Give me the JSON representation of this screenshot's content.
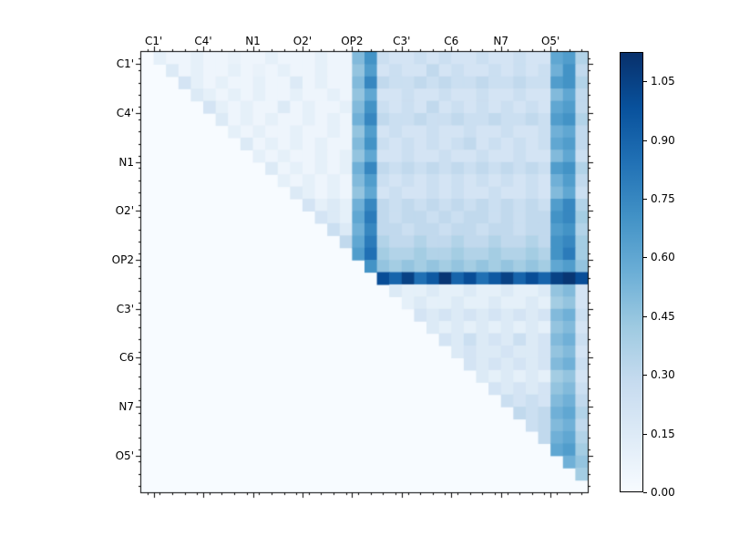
{
  "figure": {
    "background": "#ffffff",
    "border_color": "#000000"
  },
  "chart_data": {
    "type": "heatmap",
    "title": "",
    "xlabel": "",
    "ylabel": "",
    "n": 36,
    "x_tick_labels": [
      "C1'",
      "C4'",
      "N1",
      "O2'",
      "OP2",
      "C3'",
      "C6",
      "N7",
      "O5'"
    ],
    "y_tick_labels": [
      "C1'",
      "C4'",
      "N1",
      "O2'",
      "OP2",
      "C3'",
      "C6",
      "N7",
      "O5'"
    ],
    "tick_positions": [
      1,
      5,
      9,
      13,
      17,
      21,
      25,
      29,
      33
    ],
    "vmin": 0,
    "vmax": 1.125,
    "colormap": "Blues",
    "colormap_colors": [
      "#f7fbff",
      "#deebf7",
      "#c6dbef",
      "#9ecae1",
      "#6baed6",
      "#4292c6",
      "#2171b5",
      "#08519c",
      "#08306b"
    ],
    "colorbar_ticks": [
      {
        "value": 0.0,
        "label": "0.00"
      },
      {
        "value": 0.15,
        "label": "0.15"
      },
      {
        "value": 0.3,
        "label": "0.30"
      },
      {
        "value": 0.45,
        "label": "0.45"
      },
      {
        "value": 0.6,
        "label": "0.60"
      },
      {
        "value": 0.75,
        "label": "0.75"
      },
      {
        "value": 0.9,
        "label": "0.90"
      },
      {
        "value": 1.05,
        "label": "1.05"
      }
    ],
    "legend": "colorbar-right",
    "grid": false,
    "matrix": [
      [
        0,
        0.1,
        0.05,
        0.05,
        0.1,
        0.05,
        0.05,
        0.08,
        0.05,
        0.05,
        0.1,
        0.05,
        0.05,
        0.05,
        0.1,
        0.05,
        0.05,
        0.5,
        0.7,
        0.25,
        0.2,
        0.2,
        0.25,
        0.2,
        0.25,
        0.2,
        0.2,
        0.25,
        0.2,
        0.2,
        0.25,
        0.2,
        0.2,
        0.6,
        0.65,
        0.35
      ],
      [
        0,
        0,
        0.15,
        0.05,
        0.1,
        0.05,
        0.05,
        0.1,
        0.05,
        0.08,
        0.05,
        0.1,
        0.05,
        0.05,
        0.1,
        0.05,
        0.05,
        0.45,
        0.65,
        0.2,
        0.25,
        0.2,
        0.2,
        0.3,
        0.2,
        0.25,
        0.2,
        0.2,
        0.25,
        0.2,
        0.25,
        0.2,
        0.25,
        0.55,
        0.7,
        0.3
      ],
      [
        0,
        0,
        0,
        0.2,
        0.1,
        0.05,
        0.1,
        0.05,
        0.05,
        0.1,
        0.05,
        0.05,
        0.15,
        0.05,
        0.1,
        0.05,
        0.05,
        0.5,
        0.75,
        0.3,
        0.25,
        0.25,
        0.3,
        0.25,
        0.3,
        0.25,
        0.25,
        0.3,
        0.25,
        0.25,
        0.3,
        0.25,
        0.25,
        0.65,
        0.7,
        0.35
      ],
      [
        0,
        0,
        0,
        0,
        0.15,
        0.1,
        0.05,
        0.1,
        0.05,
        0.1,
        0.05,
        0.05,
        0.1,
        0.05,
        0.05,
        0.1,
        0.05,
        0.45,
        0.6,
        0.2,
        0.2,
        0.25,
        0.2,
        0.2,
        0.25,
        0.2,
        0.2,
        0.25,
        0.2,
        0.2,
        0.25,
        0.2,
        0.2,
        0.5,
        0.6,
        0.3
      ],
      [
        0,
        0,
        0,
        0,
        0,
        0.2,
        0.1,
        0.05,
        0.1,
        0.05,
        0.05,
        0.15,
        0.05,
        0.1,
        0.05,
        0.05,
        0.1,
        0.5,
        0.7,
        0.25,
        0.2,
        0.25,
        0.2,
        0.3,
        0.2,
        0.25,
        0.2,
        0.25,
        0.2,
        0.25,
        0.2,
        0.25,
        0.2,
        0.6,
        0.65,
        0.3
      ],
      [
        0,
        0,
        0,
        0,
        0,
        0,
        0.15,
        0.05,
        0.1,
        0.05,
        0.1,
        0.05,
        0.05,
        0.1,
        0.05,
        0.1,
        0.05,
        0.55,
        0.75,
        0.3,
        0.25,
        0.25,
        0.3,
        0.25,
        0.25,
        0.3,
        0.25,
        0.25,
        0.3,
        0.25,
        0.25,
        0.3,
        0.25,
        0.65,
        0.7,
        0.35
      ],
      [
        0,
        0,
        0,
        0,
        0,
        0,
        0,
        0.1,
        0.05,
        0.1,
        0.05,
        0.05,
        0.1,
        0.05,
        0.05,
        0.1,
        0.05,
        0.45,
        0.65,
        0.2,
        0.25,
        0.2,
        0.2,
        0.25,
        0.2,
        0.2,
        0.25,
        0.2,
        0.2,
        0.25,
        0.2,
        0.2,
        0.25,
        0.55,
        0.6,
        0.3
      ],
      [
        0,
        0,
        0,
        0,
        0,
        0,
        0,
        0,
        0.15,
        0.05,
        0.1,
        0.05,
        0.1,
        0.05,
        0.1,
        0.05,
        0.05,
        0.5,
        0.7,
        0.25,
        0.2,
        0.25,
        0.2,
        0.25,
        0.2,
        0.25,
        0.3,
        0.2,
        0.25,
        0.2,
        0.25,
        0.2,
        0.25,
        0.6,
        0.65,
        0.3
      ],
      [
        0,
        0,
        0,
        0,
        0,
        0,
        0,
        0,
        0,
        0.1,
        0.05,
        0.1,
        0.05,
        0.05,
        0.1,
        0.05,
        0.1,
        0.45,
        0.6,
        0.2,
        0.2,
        0.25,
        0.2,
        0.2,
        0.25,
        0.2,
        0.2,
        0.25,
        0.2,
        0.2,
        0.25,
        0.2,
        0.2,
        0.5,
        0.6,
        0.25
      ],
      [
        0,
        0,
        0,
        0,
        0,
        0,
        0,
        0,
        0,
        0,
        0.15,
        0.05,
        0.1,
        0.05,
        0.1,
        0.05,
        0.1,
        0.55,
        0.75,
        0.3,
        0.25,
        0.3,
        0.25,
        0.3,
        0.25,
        0.3,
        0.25,
        0.3,
        0.25,
        0.3,
        0.25,
        0.3,
        0.25,
        0.65,
        0.7,
        0.35
      ],
      [
        0,
        0,
        0,
        0,
        0,
        0,
        0,
        0,
        0,
        0,
        0,
        0.1,
        0.05,
        0.1,
        0.05,
        0.1,
        0.05,
        0.5,
        0.65,
        0.25,
        0.2,
        0.25,
        0.2,
        0.25,
        0.2,
        0.25,
        0.2,
        0.25,
        0.2,
        0.25,
        0.2,
        0.25,
        0.2,
        0.55,
        0.65,
        0.3
      ],
      [
        0,
        0,
        0,
        0,
        0,
        0,
        0,
        0,
        0,
        0,
        0,
        0,
        0.15,
        0.1,
        0.05,
        0.1,
        0.05,
        0.45,
        0.6,
        0.2,
        0.25,
        0.2,
        0.2,
        0.25,
        0.2,
        0.25,
        0.2,
        0.2,
        0.25,
        0.2,
        0.2,
        0.25,
        0.2,
        0.5,
        0.6,
        0.25
      ],
      [
        0,
        0,
        0,
        0,
        0,
        0,
        0,
        0,
        0,
        0,
        0,
        0,
        0,
        0.2,
        0.1,
        0.15,
        0.1,
        0.55,
        0.75,
        0.3,
        0.25,
        0.3,
        0.25,
        0.3,
        0.25,
        0.3,
        0.25,
        0.3,
        0.25,
        0.3,
        0.25,
        0.3,
        0.25,
        0.65,
        0.75,
        0.35
      ],
      [
        0,
        0,
        0,
        0,
        0,
        0,
        0,
        0,
        0,
        0,
        0,
        0,
        0,
        0,
        0.2,
        0.15,
        0.1,
        0.6,
        0.8,
        0.3,
        0.25,
        0.3,
        0.3,
        0.25,
        0.3,
        0.25,
        0.3,
        0.3,
        0.25,
        0.3,
        0.25,
        0.3,
        0.3,
        0.7,
        0.75,
        0.4
      ],
      [
        0,
        0,
        0,
        0,
        0,
        0,
        0,
        0,
        0,
        0,
        0,
        0,
        0,
        0,
        0,
        0.25,
        0.15,
        0.55,
        0.75,
        0.3,
        0.3,
        0.25,
        0.3,
        0.3,
        0.25,
        0.3,
        0.3,
        0.25,
        0.3,
        0.3,
        0.25,
        0.3,
        0.3,
        0.65,
        0.7,
        0.35
      ],
      [
        0,
        0,
        0,
        0,
        0,
        0,
        0,
        0,
        0,
        0,
        0,
        0,
        0,
        0,
        0,
        0,
        0.3,
        0.6,
        0.8,
        0.35,
        0.3,
        0.3,
        0.35,
        0.3,
        0.3,
        0.35,
        0.3,
        0.3,
        0.35,
        0.3,
        0.3,
        0.35,
        0.3,
        0.7,
        0.75,
        0.4
      ],
      [
        0,
        0,
        0,
        0,
        0,
        0,
        0,
        0,
        0,
        0,
        0,
        0,
        0,
        0,
        0,
        0,
        0,
        0.65,
        0.85,
        0.4,
        0.35,
        0.35,
        0.4,
        0.35,
        0.35,
        0.4,
        0.35,
        0.35,
        0.4,
        0.35,
        0.35,
        0.4,
        0.35,
        0.7,
        0.8,
        0.4
      ],
      [
        0,
        0,
        0,
        0,
        0,
        0,
        0,
        0,
        0,
        0,
        0,
        0,
        0,
        0,
        0,
        0,
        0,
        0,
        0.7,
        0.45,
        0.4,
        0.45,
        0.4,
        0.45,
        0.4,
        0.45,
        0.4,
        0.45,
        0.4,
        0.45,
        0.4,
        0.45,
        0.4,
        0.6,
        0.65,
        0.45
      ],
      [
        0,
        0,
        0,
        0,
        0,
        0,
        0,
        0,
        0,
        0,
        0,
        0,
        0,
        0,
        0,
        0,
        0,
        0,
        0,
        1.0,
        0.9,
        1.05,
        0.85,
        0.95,
        1.1,
        0.9,
        1.0,
        0.85,
        0.95,
        1.05,
        0.9,
        1.0,
        0.9,
        1.05,
        1.1,
        1.0
      ],
      [
        0,
        0,
        0,
        0,
        0,
        0,
        0,
        0,
        0,
        0,
        0,
        0,
        0,
        0,
        0,
        0,
        0,
        0,
        0,
        0,
        0.15,
        0.1,
        0.1,
        0.15,
        0.1,
        0.1,
        0.15,
        0.1,
        0.1,
        0.15,
        0.1,
        0.1,
        0.15,
        0.45,
        0.5,
        0.2
      ],
      [
        0,
        0,
        0,
        0,
        0,
        0,
        0,
        0,
        0,
        0,
        0,
        0,
        0,
        0,
        0,
        0,
        0,
        0,
        0,
        0,
        0,
        0.1,
        0.15,
        0.1,
        0.1,
        0.15,
        0.1,
        0.1,
        0.15,
        0.1,
        0.1,
        0.15,
        0.1,
        0.4,
        0.45,
        0.2
      ],
      [
        0,
        0,
        0,
        0,
        0,
        0,
        0,
        0,
        0,
        0,
        0,
        0,
        0,
        0,
        0,
        0,
        0,
        0,
        0,
        0,
        0,
        0,
        0.2,
        0.15,
        0.2,
        0.15,
        0.2,
        0.15,
        0.2,
        0.15,
        0.2,
        0.15,
        0.2,
        0.5,
        0.55,
        0.25
      ],
      [
        0,
        0,
        0,
        0,
        0,
        0,
        0,
        0,
        0,
        0,
        0,
        0,
        0,
        0,
        0,
        0,
        0,
        0,
        0,
        0,
        0,
        0,
        0,
        0.15,
        0.1,
        0.15,
        0.1,
        0.15,
        0.1,
        0.15,
        0.1,
        0.15,
        0.1,
        0.45,
        0.5,
        0.2
      ],
      [
        0,
        0,
        0,
        0,
        0,
        0,
        0,
        0,
        0,
        0,
        0,
        0,
        0,
        0,
        0,
        0,
        0,
        0,
        0,
        0,
        0,
        0,
        0,
        0,
        0.2,
        0.15,
        0.25,
        0.15,
        0.2,
        0.15,
        0.25,
        0.15,
        0.2,
        0.5,
        0.55,
        0.25
      ],
      [
        0,
        0,
        0,
        0,
        0,
        0,
        0,
        0,
        0,
        0,
        0,
        0,
        0,
        0,
        0,
        0,
        0,
        0,
        0,
        0,
        0,
        0,
        0,
        0,
        0,
        0.15,
        0.2,
        0.15,
        0.15,
        0.2,
        0.15,
        0.15,
        0.2,
        0.45,
        0.5,
        0.2
      ],
      [
        0,
        0,
        0,
        0,
        0,
        0,
        0,
        0,
        0,
        0,
        0,
        0,
        0,
        0,
        0,
        0,
        0,
        0,
        0,
        0,
        0,
        0,
        0,
        0,
        0,
        0,
        0.2,
        0.15,
        0.2,
        0.15,
        0.2,
        0.15,
        0.2,
        0.5,
        0.55,
        0.25
      ],
      [
        0,
        0,
        0,
        0,
        0,
        0,
        0,
        0,
        0,
        0,
        0,
        0,
        0,
        0,
        0,
        0,
        0,
        0,
        0,
        0,
        0,
        0,
        0,
        0,
        0,
        0,
        0,
        0.15,
        0.1,
        0.15,
        0.1,
        0.15,
        0.1,
        0.4,
        0.45,
        0.2
      ],
      [
        0,
        0,
        0,
        0,
        0,
        0,
        0,
        0,
        0,
        0,
        0,
        0,
        0,
        0,
        0,
        0,
        0,
        0,
        0,
        0,
        0,
        0,
        0,
        0,
        0,
        0,
        0,
        0,
        0.2,
        0.15,
        0.2,
        0.15,
        0.2,
        0.45,
        0.5,
        0.25
      ],
      [
        0,
        0,
        0,
        0,
        0,
        0,
        0,
        0,
        0,
        0,
        0,
        0,
        0,
        0,
        0,
        0,
        0,
        0,
        0,
        0,
        0,
        0,
        0,
        0,
        0,
        0,
        0,
        0,
        0,
        0.25,
        0.2,
        0.25,
        0.2,
        0.5,
        0.55,
        0.3
      ],
      [
        0,
        0,
        0,
        0,
        0,
        0,
        0,
        0,
        0,
        0,
        0,
        0,
        0,
        0,
        0,
        0,
        0,
        0,
        0,
        0,
        0,
        0,
        0,
        0,
        0,
        0,
        0,
        0,
        0,
        0,
        0.3,
        0.25,
        0.3,
        0.55,
        0.6,
        0.35
      ],
      [
        0,
        0,
        0,
        0,
        0,
        0,
        0,
        0,
        0,
        0,
        0,
        0,
        0,
        0,
        0,
        0,
        0,
        0,
        0,
        0,
        0,
        0,
        0,
        0,
        0,
        0,
        0,
        0,
        0,
        0,
        0,
        0.25,
        0.3,
        0.5,
        0.55,
        0.3
      ],
      [
        0,
        0,
        0,
        0,
        0,
        0,
        0,
        0,
        0,
        0,
        0,
        0,
        0,
        0,
        0,
        0,
        0,
        0,
        0,
        0,
        0,
        0,
        0,
        0,
        0,
        0,
        0,
        0,
        0,
        0,
        0,
        0,
        0.3,
        0.55,
        0.6,
        0.35
      ],
      [
        0,
        0,
        0,
        0,
        0,
        0,
        0,
        0,
        0,
        0,
        0,
        0,
        0,
        0,
        0,
        0,
        0,
        0,
        0,
        0,
        0,
        0,
        0,
        0,
        0,
        0,
        0,
        0,
        0,
        0,
        0,
        0,
        0,
        0.6,
        0.65,
        0.4
      ],
      [
        0,
        0,
        0,
        0,
        0,
        0,
        0,
        0,
        0,
        0,
        0,
        0,
        0,
        0,
        0,
        0,
        0,
        0,
        0,
        0,
        0,
        0,
        0,
        0,
        0,
        0,
        0,
        0,
        0,
        0,
        0,
        0,
        0,
        0,
        0.55,
        0.45
      ],
      [
        0,
        0,
        0,
        0,
        0,
        0,
        0,
        0,
        0,
        0,
        0,
        0,
        0,
        0,
        0,
        0,
        0,
        0,
        0,
        0,
        0,
        0,
        0,
        0,
        0,
        0,
        0,
        0,
        0,
        0,
        0,
        0,
        0,
        0,
        0,
        0.4
      ],
      [
        0,
        0,
        0,
        0,
        0,
        0,
        0,
        0,
        0,
        0,
        0,
        0,
        0,
        0,
        0,
        0,
        0,
        0,
        0,
        0,
        0,
        0,
        0,
        0,
        0,
        0,
        0,
        0,
        0,
        0,
        0,
        0,
        0,
        0,
        0,
        0
      ]
    ]
  }
}
